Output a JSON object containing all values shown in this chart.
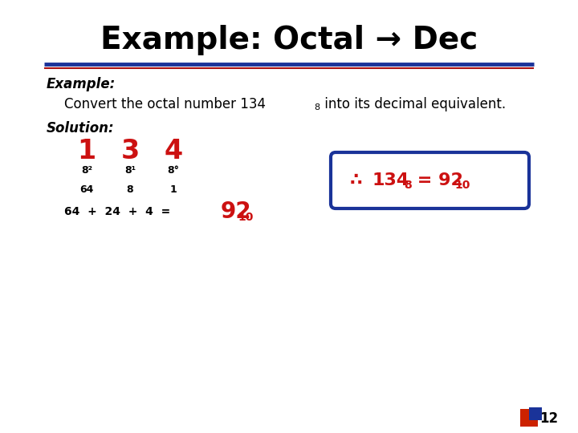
{
  "title": "Example: Octal → Dec",
  "title_fontsize": 28,
  "title_color": "#000000",
  "bg_color": "#ffffff",
  "line1_color": "#1a3399",
  "line2_color": "#aa1111",
  "example_label": "Example:",
  "solution_label": "Solution:",
  "digits": [
    "1",
    "3",
    "4"
  ],
  "digits_color": "#cc1111",
  "digits_fontsize": 24,
  "powers": [
    "8²",
    "8¹",
    "8°"
  ],
  "values": [
    "64",
    "8",
    "1"
  ],
  "result_color": "#cc1111",
  "box_color": "#1a3399",
  "page_num": "12"
}
